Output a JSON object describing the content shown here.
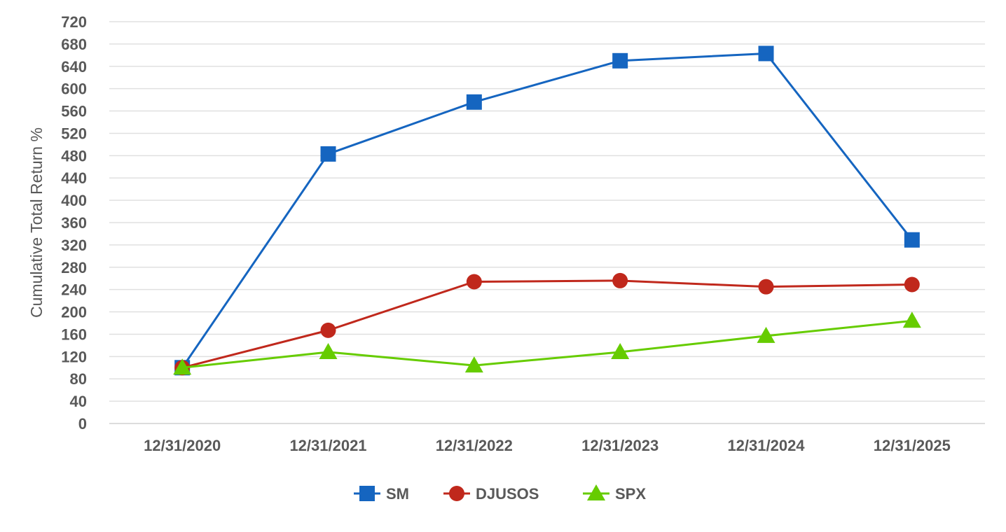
{
  "chart_data": {
    "type": "line",
    "ylabel": "Cumulative Total Return %",
    "xlabel": "",
    "categories": [
      "12/31/2020",
      "12/31/2021",
      "12/31/2022",
      "12/31/2023",
      "12/31/2024",
      "12/31/2025"
    ],
    "ylim": [
      0,
      720
    ],
    "yticks": [
      0,
      40,
      80,
      120,
      160,
      200,
      240,
      280,
      320,
      360,
      400,
      440,
      480,
      520,
      560,
      600,
      640,
      680,
      720
    ],
    "grid": true,
    "legend_position": "bottom",
    "series": [
      {
        "name": "SM",
        "color": "#1565C0",
        "marker": "square",
        "values": [
          100,
          483,
          576,
          650,
          663,
          329
        ]
      },
      {
        "name": "DJUSOS",
        "color": "#C0281C",
        "marker": "circle",
        "values": [
          100,
          167,
          254,
          256,
          245,
          249
        ]
      },
      {
        "name": "SPX",
        "color": "#66CC00",
        "marker": "triangle",
        "values": [
          100,
          128,
          104,
          128,
          157,
          184
        ]
      }
    ]
  }
}
